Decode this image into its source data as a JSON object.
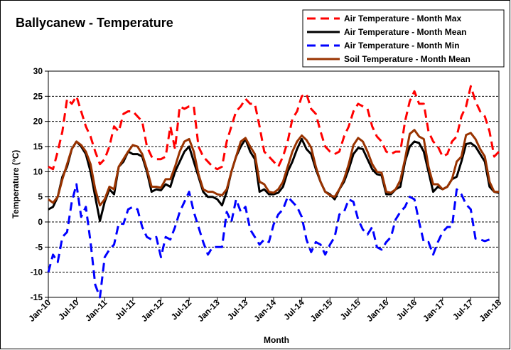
{
  "chart_data": {
    "type": "line",
    "title": "Ballycanew - Temperature",
    "xlabel": "Month",
    "ylabel": "Temperature (°C)",
    "ylim": [
      -15,
      30
    ],
    "yticks": [
      -15,
      -10,
      -5,
      0,
      5,
      10,
      15,
      20,
      25,
      30
    ],
    "xlim": [
      "2010-01",
      "2018-01"
    ],
    "xticks": [
      "Jan-10",
      "Jul-10",
      "Jan-11",
      "Jul-11",
      "Jan-12",
      "Jul-12",
      "Jan-13",
      "Jul-13",
      "Jan-14",
      "Jul-14",
      "Jan-15",
      "Jul-15",
      "Jan-16",
      "Jul-16",
      "Jan-17",
      "Jul-17",
      "Jan-18"
    ],
    "grid": "horizontal-dashed",
    "legend_position": "top-right",
    "x_start": "2010-01",
    "series": [
      {
        "name": "Air Temperature - Month Max",
        "color": "#ff0000",
        "style": "dashed",
        "values": [
          11,
          10.5,
          14,
          18,
          24.5,
          23.5,
          25,
          22,
          19,
          17,
          14,
          11.5,
          12.5,
          15,
          19,
          18,
          21.5,
          22,
          22,
          21,
          20,
          15,
          13,
          12.5,
          12.5,
          13,
          19,
          14.5,
          23,
          22.5,
          23,
          23,
          15,
          13,
          12,
          11,
          10.5,
          11,
          16,
          19,
          22,
          23,
          24.5,
          23.5,
          23.5,
          19,
          14,
          13,
          12,
          11,
          13,
          16,
          20.5,
          22,
          25,
          25.5,
          22.5,
          21.5,
          18,
          15,
          14,
          13.5,
          14,
          17,
          19,
          22,
          23.5,
          23,
          22.5,
          19,
          17,
          16,
          14,
          13.5,
          14,
          14,
          20,
          24,
          26,
          23.5,
          23.5,
          18,
          16,
          15,
          13,
          13.5,
          16,
          17,
          21,
          23,
          27,
          24,
          22,
          21,
          18,
          13,
          14
        ]
      },
      {
        "name": "Air Temperature - Month Mean",
        "color": "#000000",
        "style": "solid",
        "values": [
          2.5,
          3,
          5,
          9,
          11,
          14.5,
          16,
          15,
          13.5,
          10,
          5,
          0.2,
          4,
          6.5,
          5.5,
          11,
          12,
          14,
          13.5,
          13.5,
          13,
          10,
          6,
          6.5,
          6.3,
          7.5,
          7,
          10,
          12,
          14,
          15,
          12,
          9,
          6,
          5,
          5,
          4.5,
          3.3,
          6,
          10,
          13,
          15,
          16.5,
          14,
          12.5,
          6,
          6.5,
          5.5,
          5.5,
          5.8,
          7,
          10,
          12,
          14.5,
          16.5,
          14.5,
          13.5,
          10.5,
          8,
          6,
          5.5,
          4.5,
          6.5,
          8,
          10.5,
          13.5,
          14.7,
          14.5,
          12.5,
          10.5,
          9.5,
          9.3,
          5.5,
          5.5,
          6.5,
          7,
          12,
          15,
          16,
          15.7,
          14,
          10,
          6,
          7,
          6.5,
          7,
          8.5,
          9,
          12,
          15.5,
          15.7,
          15,
          13.5,
          12,
          7,
          6,
          5.8
        ]
      },
      {
        "name": "Air Temperature - Month Min",
        "color": "#0000ff",
        "style": "dashed",
        "values": [
          -10,
          -6.5,
          -8,
          -3,
          -2,
          4,
          7.5,
          1,
          3,
          -4,
          -12.5,
          -15,
          -7,
          -5.5,
          -4.5,
          -0.3,
          -0.4,
          2.5,
          3,
          2.5,
          -1,
          -3,
          -3.5,
          -3,
          -7,
          -3,
          -3.5,
          -1,
          2,
          4,
          6,
          2,
          -1,
          -4,
          -6.5,
          -5,
          -5,
          -5,
          2,
          0,
          4.5,
          2,
          3,
          -1.5,
          -3,
          -4.5,
          -3.5,
          -4,
          -0.5,
          1.5,
          2.5,
          5,
          4,
          3,
          1,
          -3.5,
          -6,
          -4,
          -4.5,
          -6.5,
          -4.5,
          -3,
          1.5,
          2,
          4.5,
          4,
          0.5,
          -1.5,
          -2.5,
          -1,
          -5,
          -5.5,
          -4,
          -3,
          0.5,
          2,
          3,
          5,
          4.5,
          0,
          -4,
          -4,
          -6.5,
          -4,
          -2,
          -1,
          -1,
          6.5,
          5.5,
          3.5,
          2.5,
          -3.3,
          -3.5,
          -3.8,
          -3.5
        ]
      },
      {
        "name": "Soil Temperature - Month Mean",
        "color": "#993300",
        "style": "solid",
        "values": [
          4.5,
          3.8,
          5,
          8.5,
          11.5,
          14.5,
          16,
          15.3,
          14,
          11.5,
          6.5,
          3.3,
          4.5,
          7,
          6.5,
          11,
          12.5,
          14,
          15.3,
          15,
          13.5,
          10.5,
          7,
          7,
          6.8,
          8.5,
          8.5,
          11,
          14,
          16,
          16.5,
          14,
          9.5,
          6.5,
          6,
          6,
          5.5,
          5.3,
          6.5,
          10,
          13,
          16,
          16.7,
          15,
          13.5,
          8,
          7.5,
          6,
          5.8,
          6.5,
          8,
          11,
          14,
          16,
          17.2,
          16.3,
          14.8,
          11,
          8,
          6,
          5.3,
          5,
          6.5,
          8.5,
          11.5,
          15.3,
          16.7,
          16,
          14,
          11.5,
          10,
          9.8,
          6,
          5.8,
          6.5,
          8.3,
          12.5,
          17.5,
          18.3,
          17,
          16.5,
          11,
          7.5,
          7.5,
          6.5,
          7,
          8.5,
          12,
          13,
          17.3,
          17.7,
          16.5,
          14.5,
          13,
          8,
          6,
          6
        ]
      }
    ]
  }
}
